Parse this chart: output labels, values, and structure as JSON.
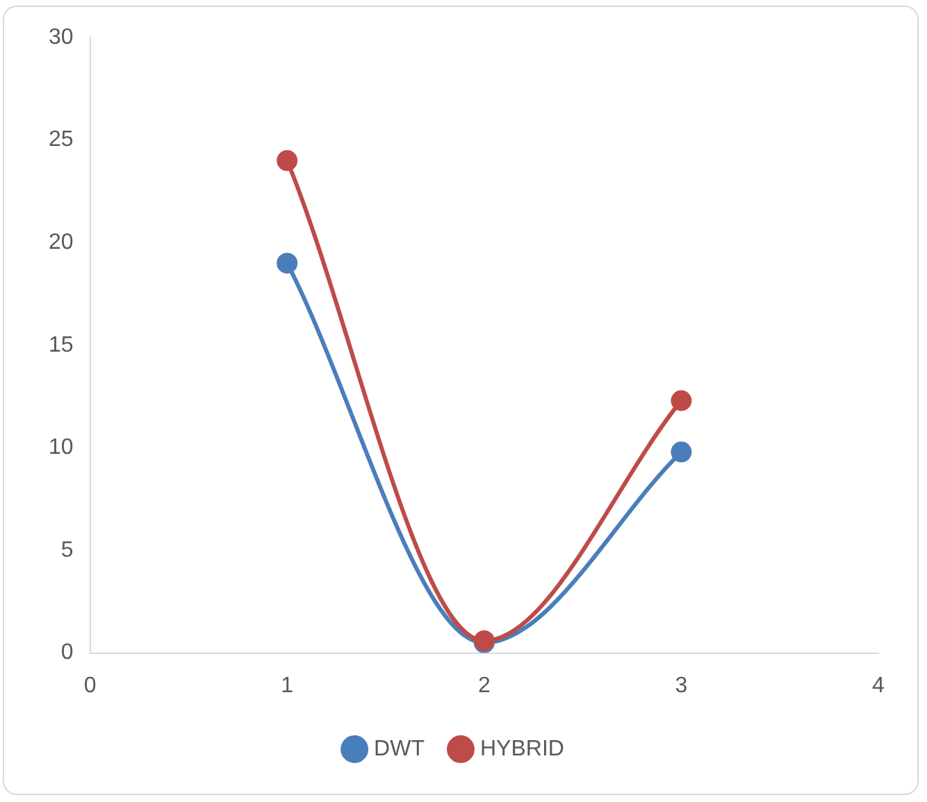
{
  "chart_data": {
    "type": "line",
    "x": [
      1,
      2,
      3
    ],
    "series": [
      {
        "name": "DWT",
        "color": "#4a7ebb",
        "values": [
          19,
          0.5,
          9.8
        ]
      },
      {
        "name": "HYBRID",
        "color": "#be4b48",
        "values": [
          24,
          0.6,
          12.3
        ]
      }
    ],
    "xlim": [
      0,
      4
    ],
    "xticks": [
      0,
      1,
      2,
      3,
      4
    ],
    "ylim": [
      0,
      30
    ],
    "yticks": [
      0,
      5,
      10,
      15,
      20,
      25,
      30
    ],
    "grid": false,
    "legend": "bottom",
    "marker": "circle",
    "line_style": "solid"
  }
}
